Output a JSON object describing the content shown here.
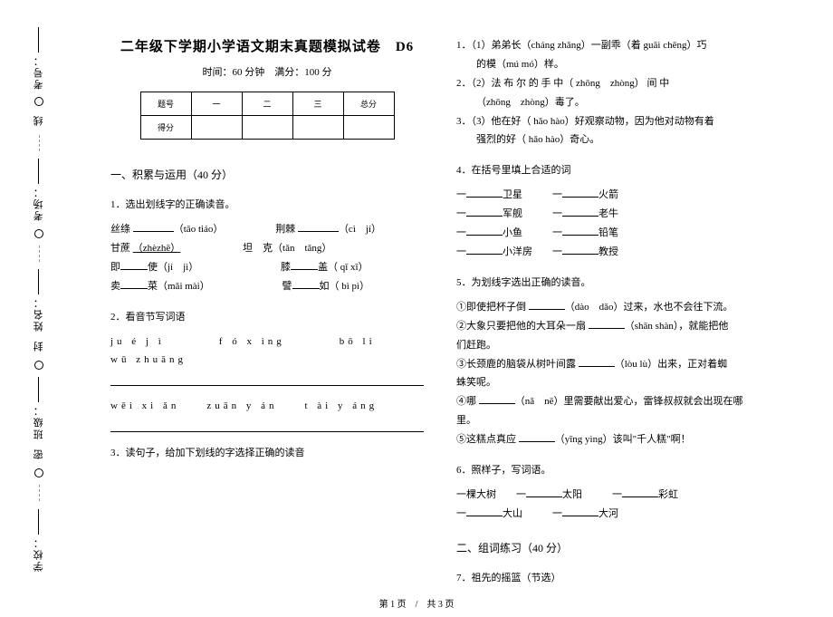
{
  "binding": {
    "labels": [
      "考号：",
      "考场：",
      "姓名：",
      "班级：",
      "学校："
    ],
    "seal_chars": [
      "线",
      "封",
      "密"
    ]
  },
  "header": {
    "title": "二年级下学期小学语文期末真题模拟试卷　D6",
    "subtitle": "时间：60 分钟　满分：100 分"
  },
  "score_table": {
    "row1": [
      "题号",
      "一",
      "二",
      "三",
      "总分"
    ],
    "row2": [
      "得分",
      "",
      "",
      "",
      ""
    ]
  },
  "section1": {
    "head": "一、积累与运用（40 分）",
    "q1": {
      "title": "1．选出划线字的正确读音。",
      "r1a": "丝绦 ",
      "r1ap": "（tāo tiáo）",
      "r1b": "荆棘 ",
      "r1bp": "（cì　jí）",
      "r2a": "甘蔗 ",
      "r2ap": "（zhèzhē）",
      "r2b": "坦　克（tǎn　tǎng）",
      "r3a": "即",
      "r3b": "使（jí　jì）",
      "r3c": "膝",
      "r3d": "盖（ qī xī）",
      "r4a": "卖",
      "r4b": "菜（mǎi mài）",
      "r4c": "譬",
      "r4d": "如（ bì pì）"
    },
    "q2": {
      "title": "2．看音节写词语",
      "p1": "ju é j ì　　　　f ó x ìng　　　　bō li　　　　wū zhuāng",
      "p2": "wēi xi ǎn　　zuān y án　　t ài y áng"
    },
    "q3": {
      "title": "3．读句子，给加下划线的字选择正确的读音"
    }
  },
  "right": {
    "q3_items": {
      "i1a": "1．（1）弟弟长（cháng zhǎng）一副乖（着 guāi chēng）巧",
      "i1b": "的模（mú mó）样。",
      "i2a": "2．（2）法 布 尔 的 手 中（ zhōng　zhòng） 间 中",
      "i2b": "（zhōng　zhòng）毒了。",
      "i3a": "3．（3）他在好（ hǎo hào）好观察动物，因为他对动物有着",
      "i3b": "强烈的好（ hǎo hào）奇心。"
    },
    "q4": {
      "title": "4．在括号里填上合适的词",
      "l1a": "一",
      "l1b": "卫星",
      "l1c": "一",
      "l1d": "火箭",
      "l2a": "一",
      "l2b": "军舰",
      "l2c": "一",
      "l2d": "老牛",
      "l3a": "一",
      "l3b": "小鱼",
      "l3c": "一",
      "l3d": "铅笔",
      "l4a": "一",
      "l4b": "小洋房",
      "l4c": "一",
      "l4d": "教授"
    },
    "q5": {
      "title": "5．为划线字选出正确的读音。",
      "i1": "①即使把杯子倒 ",
      "i1p": "（dào　dǎo）过来，水也不会往下流。",
      "i2a": "②大象只要把他的大耳朵一扇 ",
      "i2p": "（shān shàn），就能把他",
      "i2b": "们赶跑。",
      "i3a": "③长颈鹿的脑袋从树叶间露 ",
      "i3p": "（lòu lù）出来，正对着蜘",
      "i3b": "蛛笑呢。",
      "i4a": "④哪 ",
      "i4p": "（nǎ　nē）里需要献出爱心，雷锋叔叔就会出现在哪",
      "i4b": "里。",
      "i5": "⑤这糕点真应 ",
      "i5p": "（yīng yìng）该叫\"千人糕\"啊！"
    },
    "q6": {
      "title": "6．照样子，写词语。",
      "l1a": "一棵大树　　一",
      "l1b": "太阳　　　一",
      "l1c": "彩虹",
      "l2a": "一",
      "l2b": "大山　　　一",
      "l2c": "大河"
    },
    "section2": "二、组词练习（40 分）",
    "q7": "7．祖先的摇篮（节选）"
  },
  "footer": "第 1 页　/　共 3 页"
}
